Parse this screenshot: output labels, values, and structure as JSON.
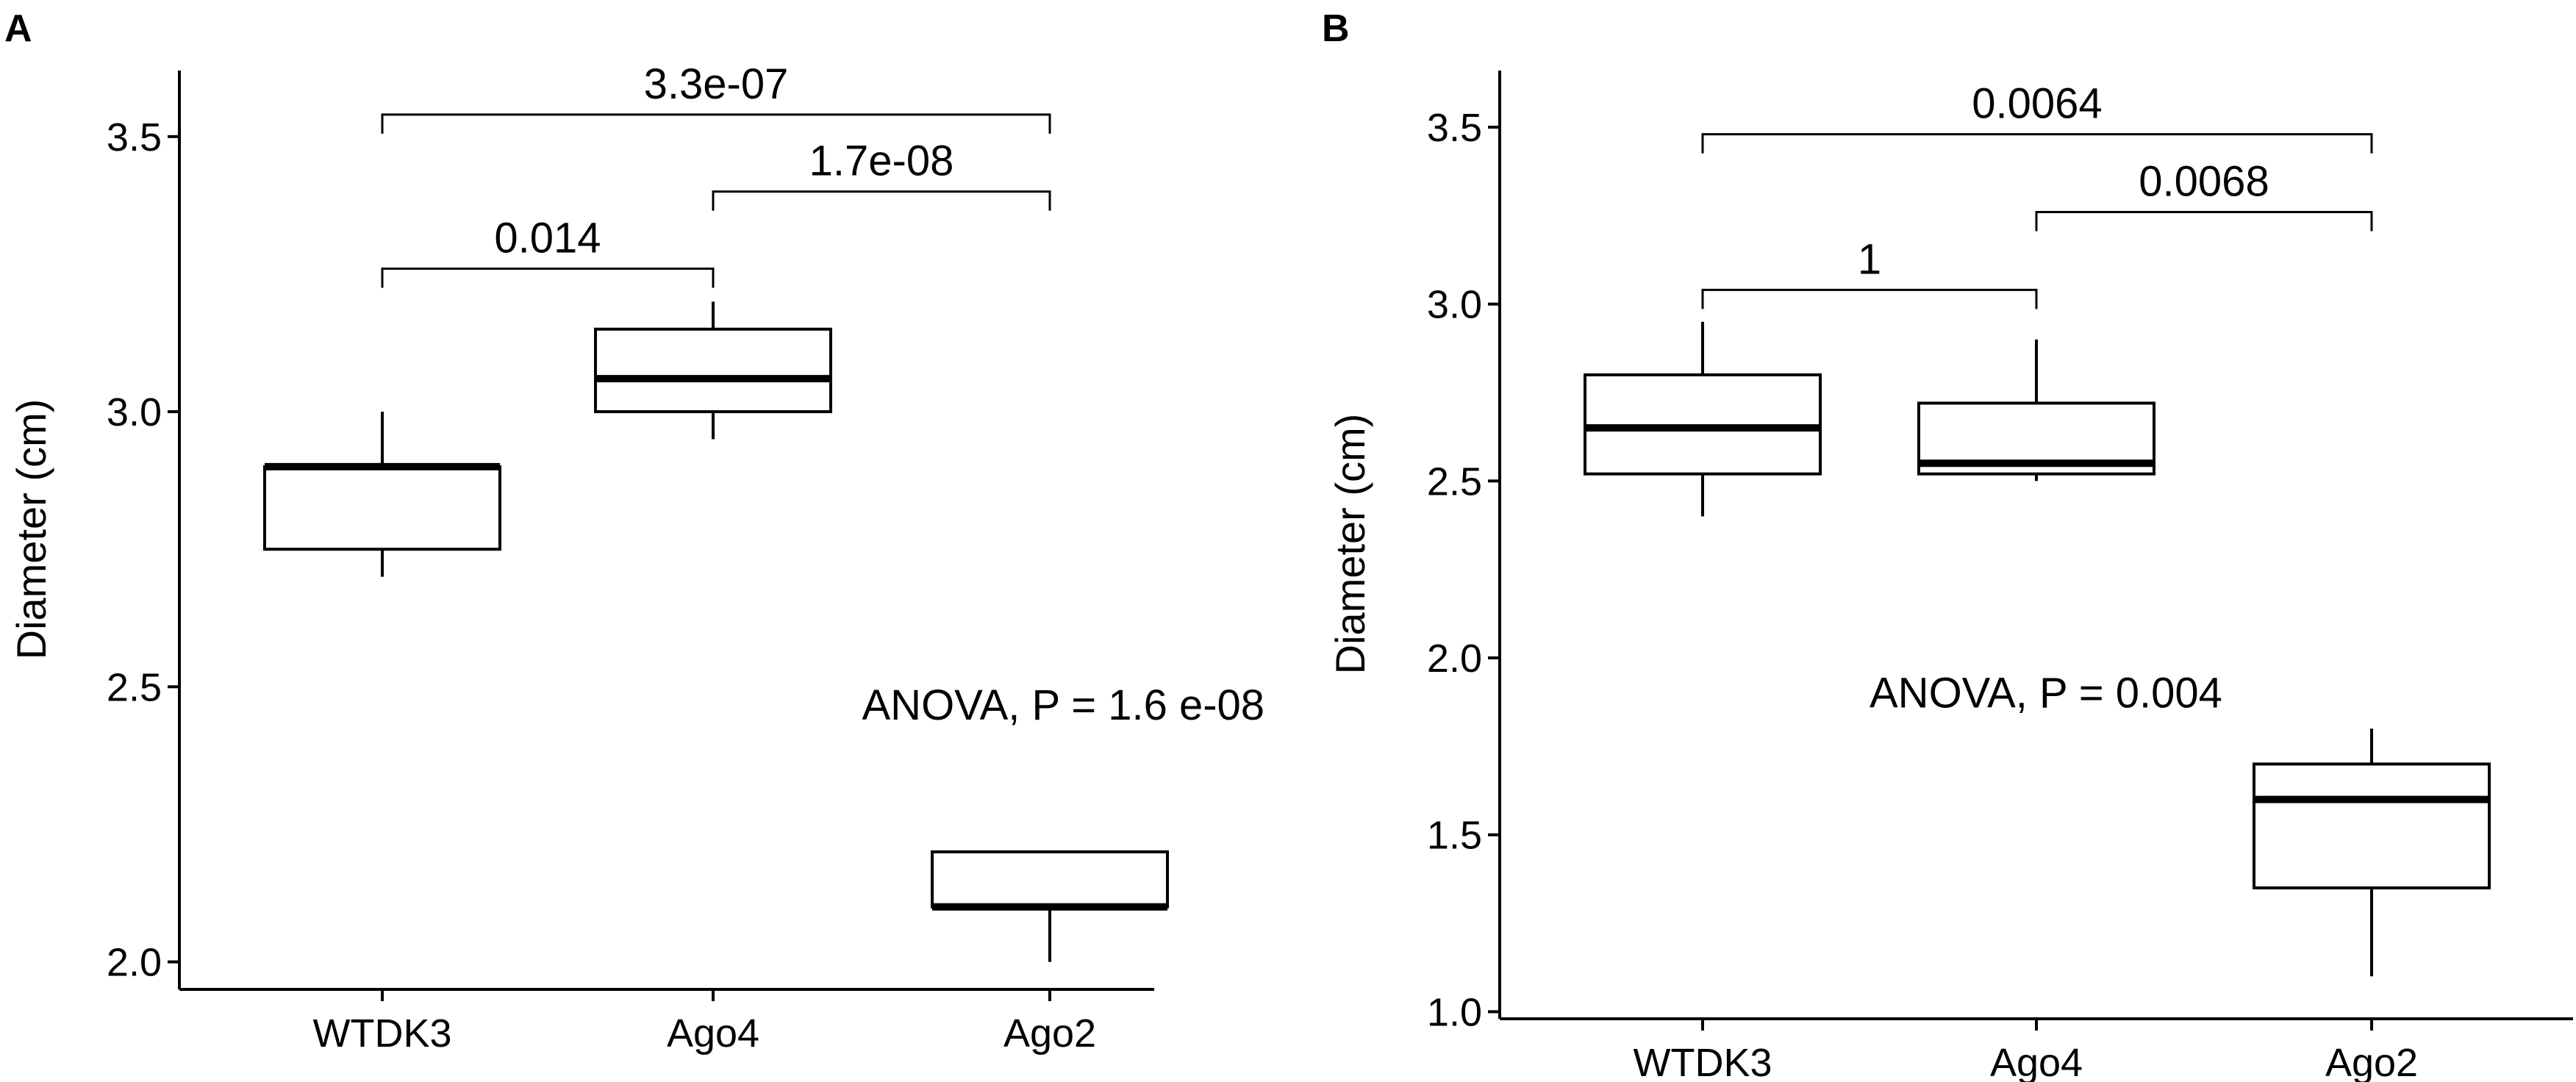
{
  "figure": {
    "panels": [
      "A",
      "B"
    ]
  },
  "chart_data": [
    {
      "panel": "A",
      "type": "box",
      "categories": [
        "WTDK3",
        "Ago4",
        "Ago2"
      ],
      "series": [
        {
          "name": "WTDK3",
          "min": 2.7,
          "q1": 2.75,
          "median": 2.9,
          "q3": 2.9,
          "max": 3.0
        },
        {
          "name": "Ago4",
          "min": 2.95,
          "q1": 3.0,
          "median": 3.06,
          "q3": 3.15,
          "max": 3.2
        },
        {
          "name": "Ago2",
          "min": 2.0,
          "q1": 2.1,
          "median": 2.1,
          "q3": 2.2,
          "max": 2.2
        }
      ],
      "ylabel": "Diameter (cm)",
      "xlabel": "",
      "ylim": [
        1.95,
        3.62
      ],
      "yticks": [
        2.0,
        2.5,
        3.0,
        3.5
      ],
      "ytick_labels": [
        "2.0",
        "2.5",
        "3.0",
        "3.5"
      ],
      "annotation": "ANOVA, P = 1.6 e-08",
      "annotation_pos": {
        "x": 1.45,
        "y": 2.44
      },
      "comparisons": [
        {
          "from": 0,
          "to": 1,
          "label": "0.014",
          "y": 3.26
        },
        {
          "from": 1,
          "to": 2,
          "label": "1.7e-08",
          "y": 3.4
        },
        {
          "from": 0,
          "to": 2,
          "label": "3.3e-07",
          "y": 3.54
        }
      ]
    },
    {
      "panel": "B",
      "type": "box",
      "categories": [
        "WTDK3",
        "Ago4",
        "Ago2"
      ],
      "series": [
        {
          "name": "WTDK3",
          "min": 2.4,
          "q1": 2.52,
          "median": 2.65,
          "q3": 2.8,
          "max": 2.95
        },
        {
          "name": "Ago4",
          "min": 2.5,
          "q1": 2.52,
          "median": 2.55,
          "q3": 2.72,
          "max": 2.9
        },
        {
          "name": "Ago2",
          "min": 1.1,
          "q1": 1.35,
          "median": 1.6,
          "q3": 1.7,
          "max": 1.8
        }
      ],
      "ylabel": "Diameter (cm)",
      "xlabel": "",
      "ylim": [
        0.98,
        3.66
      ],
      "yticks": [
        1.0,
        1.5,
        2.0,
        2.5,
        3.0,
        3.5
      ],
      "ytick_labels": [
        "1.0",
        "1.5",
        "2.0",
        "2.5",
        "3.0",
        "3.5"
      ],
      "annotation": "ANOVA, P = 0.004",
      "annotation_pos": {
        "x": 0.5,
        "y": 1.86
      },
      "comparisons": [
        {
          "from": 0,
          "to": 1,
          "label": "1",
          "y": 3.04
        },
        {
          "from": 1,
          "to": 2,
          "label": "0.0068",
          "y": 3.26
        },
        {
          "from": 0,
          "to": 2,
          "label": "0.0064",
          "y": 3.48
        }
      ]
    }
  ]
}
